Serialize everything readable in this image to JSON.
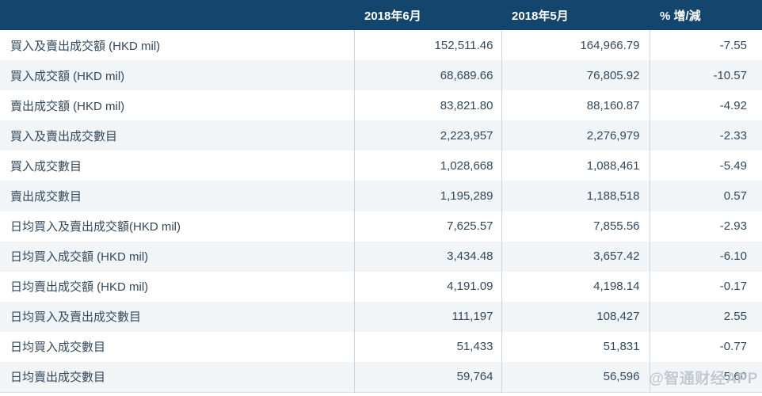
{
  "table": {
    "columns": [
      {
        "label": ""
      },
      {
        "label": "2018年6月"
      },
      {
        "label": "2018年5月"
      },
      {
        "label": "% 增/減"
      }
    ],
    "rows": [
      {
        "label": "買入及賣出成交額 (HKD mil)",
        "jun": "152,511.46",
        "may": "164,966.79",
        "chg": "-7.55"
      },
      {
        "label": "買入成交額 (HKD mil)",
        "jun": "68,689.66",
        "may": "76,805.92",
        "chg": "-10.57"
      },
      {
        "label": "賣出成交額 (HKD mil)",
        "jun": "83,821.80",
        "may": "88,160.87",
        "chg": "-4.92"
      },
      {
        "label": "買入及賣出成交數目",
        "jun": "2,223,957",
        "may": "2,276,979",
        "chg": "-2.33"
      },
      {
        "label": "買入成交數目",
        "jun": "1,028,668",
        "may": "1,088,461",
        "chg": "-5.49"
      },
      {
        "label": "賣出成交數目",
        "jun": "1,195,289",
        "may": "1,188,518",
        "chg": "0.57"
      },
      {
        "label": "日均買入及賣出成交額(HKD mil)",
        "jun": "7,625.57",
        "may": "7,855.56",
        "chg": "-2.93"
      },
      {
        "label": "日均買入成交額 (HKD mil)",
        "jun": "3,434.48",
        "may": "3,657.42",
        "chg": "-6.10"
      },
      {
        "label": "日均賣出成交額 (HKD mil)",
        "jun": "4,191.09",
        "may": "4,198.14",
        "chg": "-0.17"
      },
      {
        "label": "日均買入及賣出成交數目",
        "jun": "111,197",
        "may": "108,427",
        "chg": "2.55"
      },
      {
        "label": "日均買入成交數目",
        "jun": "51,433",
        "may": "51,831",
        "chg": "-0.77"
      },
      {
        "label": "日均賣出成交數目",
        "jun": "59,764",
        "may": "56,596",
        "chg": "5.60"
      }
    ]
  },
  "watermark": "@智通财经APP",
  "colors": {
    "header_bg": "#14466d",
    "stripe_bg": "#f1f5f8",
    "divider": "#ccd5de",
    "text": "#33485c",
    "header_text": "#ffffff",
    "watermark_text": "#b6bec9"
  },
  "chart_data": {
    "type": "table",
    "title": "",
    "columns": [
      "",
      "2018年6月",
      "2018年5月",
      "% 增/減"
    ],
    "rows": [
      [
        "買入及賣出成交額 (HKD mil)",
        152511.46,
        164966.79,
        -7.55
      ],
      [
        "買入成交額 (HKD mil)",
        68689.66,
        76805.92,
        -10.57
      ],
      [
        "賣出成交額 (HKD mil)",
        83821.8,
        88160.87,
        -4.92
      ],
      [
        "買入及賣出成交數目",
        2223957,
        2276979,
        -2.33
      ],
      [
        "買入成交數目",
        1028668,
        1088461,
        -5.49
      ],
      [
        "賣出成交數目",
        1195289,
        1188518,
        0.57
      ],
      [
        "日均買入及賣出成交額(HKD mil)",
        7625.57,
        7855.56,
        -2.93
      ],
      [
        "日均買入成交額 (HKD mil)",
        3434.48,
        3657.42,
        -6.1
      ],
      [
        "日均賣出成交額 (HKD mil)",
        4191.09,
        4198.14,
        -0.17
      ],
      [
        "日均買入及賣出成交數目",
        111197,
        108427,
        2.55
      ],
      [
        "日均買入成交數目",
        51433,
        51831,
        -0.77
      ],
      [
        "日均賣出成交數目",
        59764,
        56596,
        5.6
      ]
    ]
  }
}
